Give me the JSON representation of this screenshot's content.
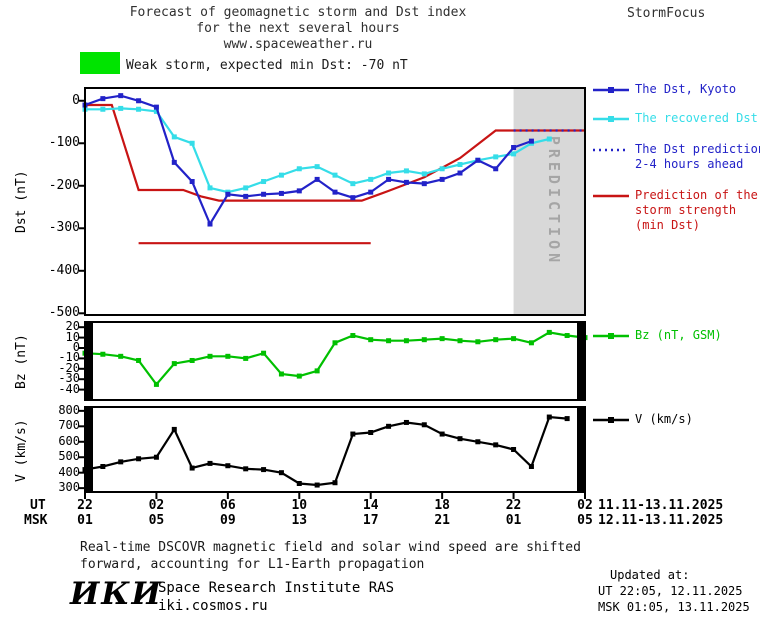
{
  "header": {
    "title_line1": "Forecast of geomagnetic storm and Dst index",
    "title_line2": "for the next several hours",
    "title_line3": "www.spaceweather.ru",
    "brand": "StormFocus"
  },
  "banner": {
    "text": "Weak storm, expected min Dst: -70 nT",
    "swatch_color": "#00e400"
  },
  "prediction_label": "PREDICTION",
  "colors": {
    "dst_kyoto": "#2222c8",
    "recovered_dst": "#35dde8",
    "storm_strength": "#c81414",
    "bz": "#00c000",
    "v": "#000000",
    "band": "#d8d8d8",
    "band_text": "#a5a5a5"
  },
  "time_axis": {
    "ut_label": "UT",
    "msk_label": "MSK",
    "ut_ticks": [
      "22",
      "02",
      "06",
      "10",
      "14",
      "18",
      "22",
      "02"
    ],
    "msk_ticks": [
      "01",
      "05",
      "09",
      "13",
      "17",
      "21",
      "01",
      "05"
    ],
    "ut_dates": "11.11-13.11.2025",
    "msk_dates": "12.11-13.11.2025"
  },
  "footnote": {
    "line1": "Real-time DSCOVR magnetic field and solar wind speed are shifted",
    "line2": "forward, accounting for L1-Earth propagation"
  },
  "footer": {
    "logo": "ИКИ",
    "institute": "Space Research Institute RAS",
    "site": "iki.cosmos.ru",
    "updated_label": "Updated at:",
    "updated_ut": "UT  22:05, 12.11.2025",
    "updated_msk": "MSK 01:05, 13.11.2025"
  },
  "chart_data": [
    {
      "type": "line",
      "title": "Forecast of geomagnetic storm and Dst index for the next several hours",
      "ylabel": "Dst (nT)",
      "ylim": [
        -500,
        30
      ],
      "yticks": [
        0,
        -100,
        -200,
        -300,
        -400,
        -500
      ],
      "x_unit": "hours since 22:00 UT 11.11.2025",
      "xlim": [
        0,
        28
      ],
      "grid": false,
      "legend_position": "right",
      "prediction_band_x": [
        24,
        28
      ],
      "series": [
        {
          "name": "Expected storm minimum marker",
          "color": "#c81414",
          "style": "solid",
          "marker": false,
          "x": [
            3,
            16
          ],
          "y": [
            -335,
            -335
          ]
        },
        {
          "name": "Prediction of the storm strength (min Dst)",
          "color": "#c81414",
          "style": "solid",
          "marker": false,
          "x": [
            0,
            1.5,
            3,
            5.5,
            6.5,
            7.5,
            15.5,
            17,
            19,
            21,
            23,
            28
          ],
          "y": [
            -10,
            -10,
            -210,
            -210,
            -225,
            -235,
            -235,
            -212,
            -180,
            -135,
            -70,
            -70
          ]
        },
        {
          "name": "The recovered Dst",
          "color": "#35dde8",
          "style": "solid",
          "marker": true,
          "x": [
            0,
            1,
            2,
            3,
            4,
            5,
            6,
            7,
            8,
            9,
            10,
            11,
            12,
            13,
            14,
            15,
            16,
            17,
            18,
            19,
            20,
            21,
            22,
            23,
            24,
            25,
            26
          ],
          "y": [
            -20,
            -20,
            -18,
            -20,
            -25,
            -85,
            -100,
            -205,
            -215,
            -205,
            -190,
            -175,
            -160,
            -155,
            -175,
            -195,
            -185,
            -170,
            -165,
            -172,
            -160,
            -150,
            -140,
            -132,
            -125,
            -100,
            -90
          ]
        },
        {
          "name": "The Dst, Kyoto",
          "color": "#2222c8",
          "style": "solid",
          "marker": true,
          "x": [
            0,
            1,
            2,
            3,
            4,
            5,
            6,
            7,
            8,
            9,
            10,
            11,
            12,
            13,
            14,
            15,
            16,
            17,
            18,
            19,
            20,
            21,
            22,
            23,
            24,
            25
          ],
          "y": [
            -10,
            5,
            12,
            0,
            -15,
            -145,
            -190,
            -290,
            -220,
            -225,
            -220,
            -218,
            -212,
            -185,
            -215,
            -228,
            -215,
            -185,
            -192,
            -195,
            -185,
            -170,
            -140,
            -160,
            -110,
            -95
          ]
        },
        {
          "name": "The Dst prediction 2-4 hours ahead",
          "color": "#2222c8",
          "style": "dotted",
          "marker": false,
          "x": [
            24,
            28
          ],
          "y": [
            -70,
            -70
          ]
        }
      ],
      "legend": [
        {
          "label_lines": [
            "The Dst, Kyoto"
          ],
          "color": "#2222c8",
          "style": "solid",
          "marker": true
        },
        {
          "label_lines": [
            "The recovered Dst"
          ],
          "color": "#35dde8",
          "style": "solid",
          "marker": true
        },
        {
          "label_lines": [
            "The Dst prediction",
            "2-4 hours ahead"
          ],
          "color": "#2222c8",
          "style": "dotted",
          "marker": false
        },
        {
          "label_lines": [
            "Prediction of the",
            "storm strength",
            "(min Dst)"
          ],
          "color": "#c81414",
          "style": "solid",
          "marker": false
        }
      ]
    },
    {
      "type": "line",
      "title": "Bz GSM component",
      "ylabel": "Bz (nT)",
      "ylim": [
        -40,
        20
      ],
      "yticks": [
        20,
        10,
        0,
        -10,
        -20,
        -30,
        -40
      ],
      "xlim": [
        0,
        28
      ],
      "grid": false,
      "series": [
        {
          "name": "Bz (nT, GSM)",
          "color": "#00c000",
          "style": "solid",
          "marker": true,
          "x": [
            0,
            1,
            2,
            3,
            4,
            5,
            6,
            7,
            8,
            9,
            10,
            11,
            12,
            13,
            14,
            15,
            16,
            17,
            18,
            19,
            20,
            21,
            22,
            23,
            24,
            25,
            26,
            27,
            28
          ],
          "y": [
            -5,
            -6,
            -8,
            -12,
            -35,
            -15,
            -12,
            -8,
            -8,
            -10,
            -5,
            -25,
            -27,
            -22,
            5,
            12,
            8,
            7,
            7,
            8,
            9,
            7,
            6,
            8,
            9,
            5,
            15,
            12,
            10
          ]
        }
      ],
      "legend": [
        {
          "label_lines": [
            "Bz (nT, GSM)"
          ],
          "color": "#00c000",
          "style": "solid",
          "marker": true
        }
      ]
    },
    {
      "type": "line",
      "title": "Solar wind speed",
      "ylabel": "V (km/s)",
      "ylim": [
        300,
        800
      ],
      "yticks": [
        800,
        700,
        600,
        500,
        400,
        300
      ],
      "xlim": [
        0,
        28
      ],
      "grid": false,
      "series": [
        {
          "name": "V (km/s)",
          "color": "#000000",
          "style": "solid",
          "marker": true,
          "x": [
            0,
            1,
            2,
            3,
            4,
            5,
            6,
            7,
            8,
            9,
            10,
            11,
            12,
            13,
            14,
            15,
            16,
            17,
            18,
            19,
            20,
            21,
            22,
            23,
            24,
            25,
            26,
            27
          ],
          "y": [
            420,
            440,
            470,
            490,
            500,
            680,
            430,
            460,
            445,
            425,
            420,
            400,
            330,
            320,
            335,
            650,
            660,
            700,
            725,
            710,
            650,
            620,
            600,
            580,
            550,
            440,
            760,
            750
          ]
        }
      ],
      "legend": [
        {
          "label_lines": [
            "V (km/s)"
          ],
          "color": "#000000",
          "style": "solid",
          "marker": true
        }
      ]
    }
  ]
}
